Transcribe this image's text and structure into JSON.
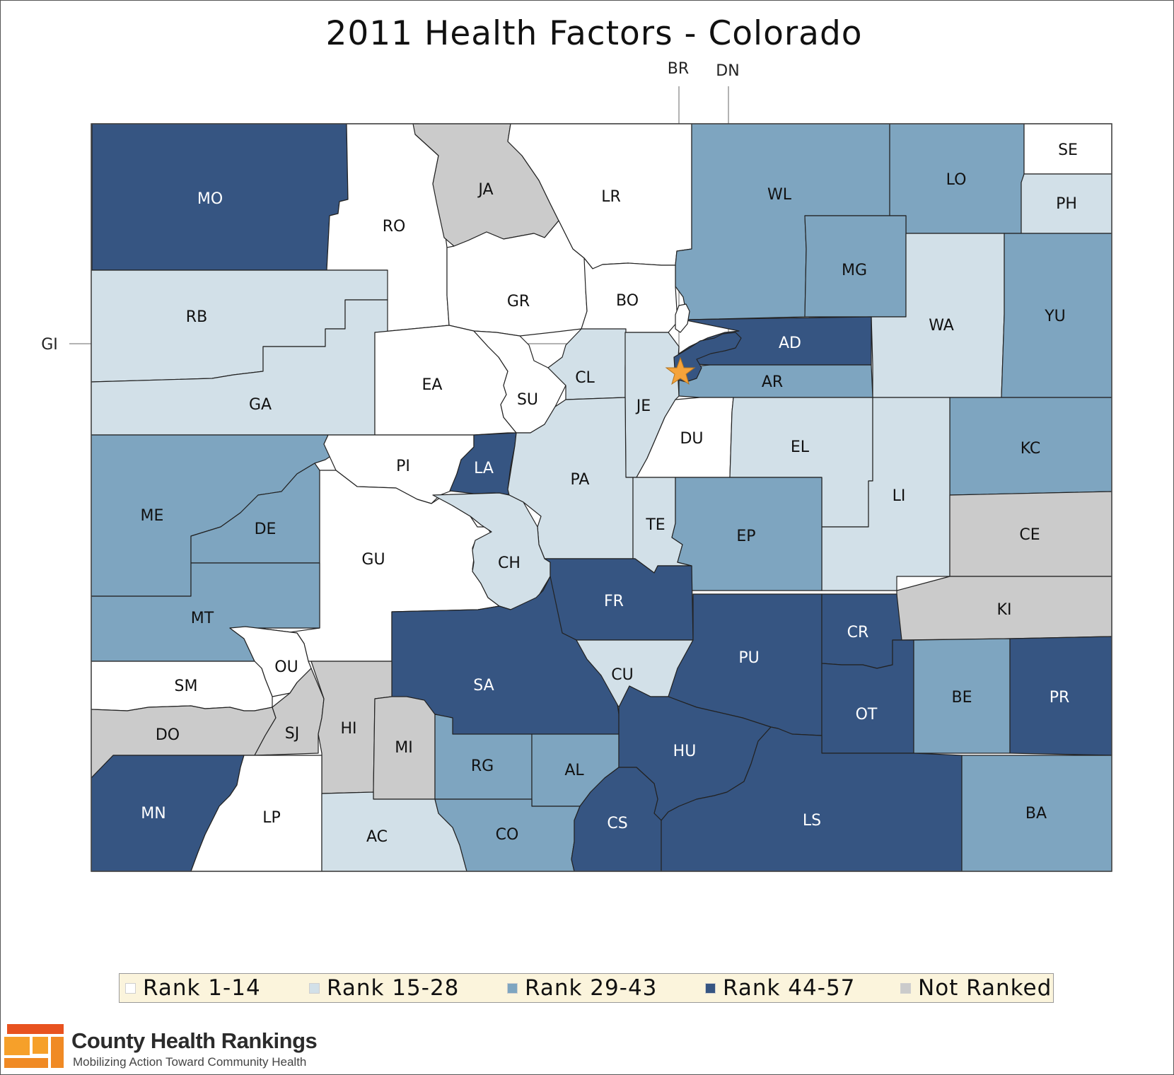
{
  "title": "2011 Health Factors - Colorado",
  "colors": {
    "rank_1_14": "#ffffff",
    "rank_15_28": "#d2e0e8",
    "rank_29_43": "#7ea5c0",
    "rank_44_57": "#365582",
    "not_ranked": "#cbcbcb",
    "border": "#222222",
    "star": "#f5a33a"
  },
  "legend": [
    {
      "key": "rank_1_14",
      "label": "Rank 1-14"
    },
    {
      "key": "rank_15_28",
      "label": "Rank 15-28"
    },
    {
      "key": "rank_29_43",
      "label": "Rank 29-43"
    },
    {
      "key": "rank_44_57",
      "label": "Rank 44-57"
    },
    {
      "key": "not_ranked",
      "label": "Not Ranked"
    }
  ],
  "external_labels": {
    "br": "BR",
    "dn": "DN",
    "gi": "GI"
  },
  "counties": [
    {
      "code": "MO",
      "category": "rank_44_57"
    },
    {
      "code": "RO",
      "category": "rank_1_14"
    },
    {
      "code": "JA",
      "category": "not_ranked"
    },
    {
      "code": "LR",
      "category": "rank_1_14"
    },
    {
      "code": "WL",
      "category": "rank_29_43"
    },
    {
      "code": "LO",
      "category": "rank_29_43"
    },
    {
      "code": "SE",
      "category": "rank_1_14"
    },
    {
      "code": "PH",
      "category": "rank_15_28"
    },
    {
      "code": "RB",
      "category": "rank_15_28"
    },
    {
      "code": "GR",
      "category": "rank_1_14"
    },
    {
      "code": "BO",
      "category": "rank_1_14"
    },
    {
      "code": "MG",
      "category": "rank_29_43"
    },
    {
      "code": "WA",
      "category": "rank_15_28"
    },
    {
      "code": "YU",
      "category": "rank_29_43"
    },
    {
      "code": "GA",
      "category": "rank_15_28"
    },
    {
      "code": "EA",
      "category": "rank_1_14"
    },
    {
      "code": "SU",
      "category": "rank_1_14"
    },
    {
      "code": "CL",
      "category": "rank_15_28"
    },
    {
      "code": "JE",
      "category": "rank_15_28"
    },
    {
      "code": "AD",
      "category": "rank_44_57"
    },
    {
      "code": "AR",
      "category": "rank_29_43"
    },
    {
      "code": "DU",
      "category": "rank_1_14"
    },
    {
      "code": "EL",
      "category": "rank_15_28"
    },
    {
      "code": "KC",
      "category": "rank_29_43"
    },
    {
      "code": "ME",
      "category": "rank_29_43"
    },
    {
      "code": "DE",
      "category": "rank_29_43"
    },
    {
      "code": "PI",
      "category": "rank_1_14"
    },
    {
      "code": "LA",
      "category": "rank_44_57"
    },
    {
      "code": "PA",
      "category": "rank_15_28"
    },
    {
      "code": "LI",
      "category": "rank_15_28"
    },
    {
      "code": "CE",
      "category": "not_ranked"
    },
    {
      "code": "GU",
      "category": "rank_1_14"
    },
    {
      "code": "CH",
      "category": "rank_15_28"
    },
    {
      "code": "TE",
      "category": "rank_15_28"
    },
    {
      "code": "EP",
      "category": "rank_29_43"
    },
    {
      "code": "FR",
      "category": "rank_44_57"
    },
    {
      "code": "KI",
      "category": "not_ranked"
    },
    {
      "code": "MT",
      "category": "rank_29_43"
    },
    {
      "code": "OU",
      "category": "rank_1_14"
    },
    {
      "code": "SM",
      "category": "rank_1_14"
    },
    {
      "code": "SA",
      "category": "rank_44_57"
    },
    {
      "code": "CU",
      "category": "rank_15_28"
    },
    {
      "code": "PU",
      "category": "rank_44_57"
    },
    {
      "code": "CR",
      "category": "rank_44_57"
    },
    {
      "code": "OT",
      "category": "rank_44_57"
    },
    {
      "code": "BE",
      "category": "rank_29_43"
    },
    {
      "code": "PR",
      "category": "rank_44_57"
    },
    {
      "code": "DO",
      "category": "not_ranked"
    },
    {
      "code": "SJ",
      "category": "not_ranked"
    },
    {
      "code": "HI",
      "category": "not_ranked"
    },
    {
      "code": "MI",
      "category": "not_ranked"
    },
    {
      "code": "RG",
      "category": "rank_29_43"
    },
    {
      "code": "AL",
      "category": "rank_29_43"
    },
    {
      "code": "HU",
      "category": "rank_44_57"
    },
    {
      "code": "MN",
      "category": "rank_44_57"
    },
    {
      "code": "LP",
      "category": "rank_1_14"
    },
    {
      "code": "AC",
      "category": "rank_15_28"
    },
    {
      "code": "CO",
      "category": "rank_29_43"
    },
    {
      "code": "CS",
      "category": "rank_44_57"
    },
    {
      "code": "LS",
      "category": "rank_44_57"
    },
    {
      "code": "BA",
      "category": "rank_29_43"
    },
    {
      "code": "BR",
      "category": "rank_1_14"
    },
    {
      "code": "DN",
      "category": "rank_44_57"
    }
  ],
  "brand": {
    "name": "County Health Rankings",
    "tagline": "Mobilizing Action Toward Community Health"
  }
}
